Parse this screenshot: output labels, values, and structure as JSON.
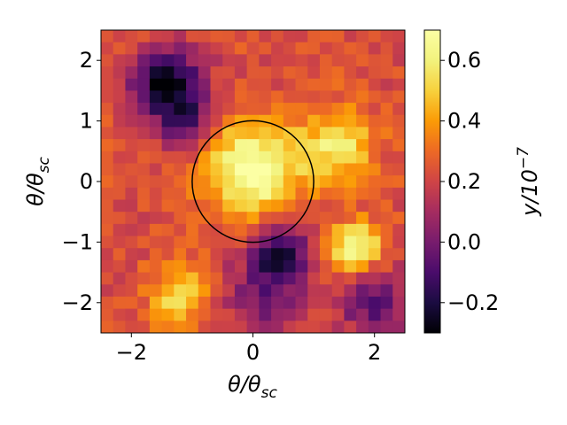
{
  "chart_data": {
    "type": "heatmap",
    "title": "",
    "x_axis": {
      "label_main": "θ/θ",
      "label_sub": "sc",
      "range": [
        -2.5,
        2.5
      ],
      "ticks": [
        -2,
        0,
        2
      ],
      "tick_labels": [
        "−2",
        "0",
        "2"
      ]
    },
    "y_axis": {
      "label_main": "θ/θ",
      "label_sub": "sc",
      "range": [
        -2.5,
        2.5
      ],
      "ticks": [
        -2,
        -1,
        0,
        1,
        2
      ],
      "tick_labels": [
        "−2",
        "−1",
        "0",
        "1",
        "2"
      ]
    },
    "colorbar": {
      "label_main": "y/10",
      "label_sup": "−7",
      "range": [
        -0.3,
        0.7
      ],
      "colormap": "inferno",
      "ticks": [
        -0.2,
        0.0,
        0.2,
        0.4,
        0.6
      ],
      "tick_labels": [
        "−0.2",
        "0.0",
        "0.2",
        "0.4",
        "0.6"
      ]
    },
    "grid_size": 25,
    "blobs": [
      {
        "x": 0.0,
        "y": 0.2,
        "sigma": 0.55,
        "amp": 0.5
      },
      {
        "x": 1.4,
        "y": 0.6,
        "sigma": 0.4,
        "amp": 0.35
      },
      {
        "x": 1.7,
        "y": -1.1,
        "sigma": 0.3,
        "amp": 0.45
      },
      {
        "x": -1.2,
        "y": -1.9,
        "sigma": 0.35,
        "amp": 0.3
      },
      {
        "x": -1.4,
        "y": 1.6,
        "sigma": 0.4,
        "amp": -0.55
      },
      {
        "x": 0.45,
        "y": -1.15,
        "sigma": 0.3,
        "amp": -0.45
      },
      {
        "x": -1.1,
        "y": 0.9,
        "sigma": 0.3,
        "amp": -0.3
      },
      {
        "x": 2.0,
        "y": -2.0,
        "sigma": 0.4,
        "amp": -0.3
      },
      {
        "x": 0.2,
        "y": -1.9,
        "sigma": 0.5,
        "amp": -0.25
      }
    ],
    "base_value": 0.23,
    "circle": {
      "center": [
        0,
        0
      ],
      "radius": 1.0,
      "color": "#000000"
    }
  }
}
